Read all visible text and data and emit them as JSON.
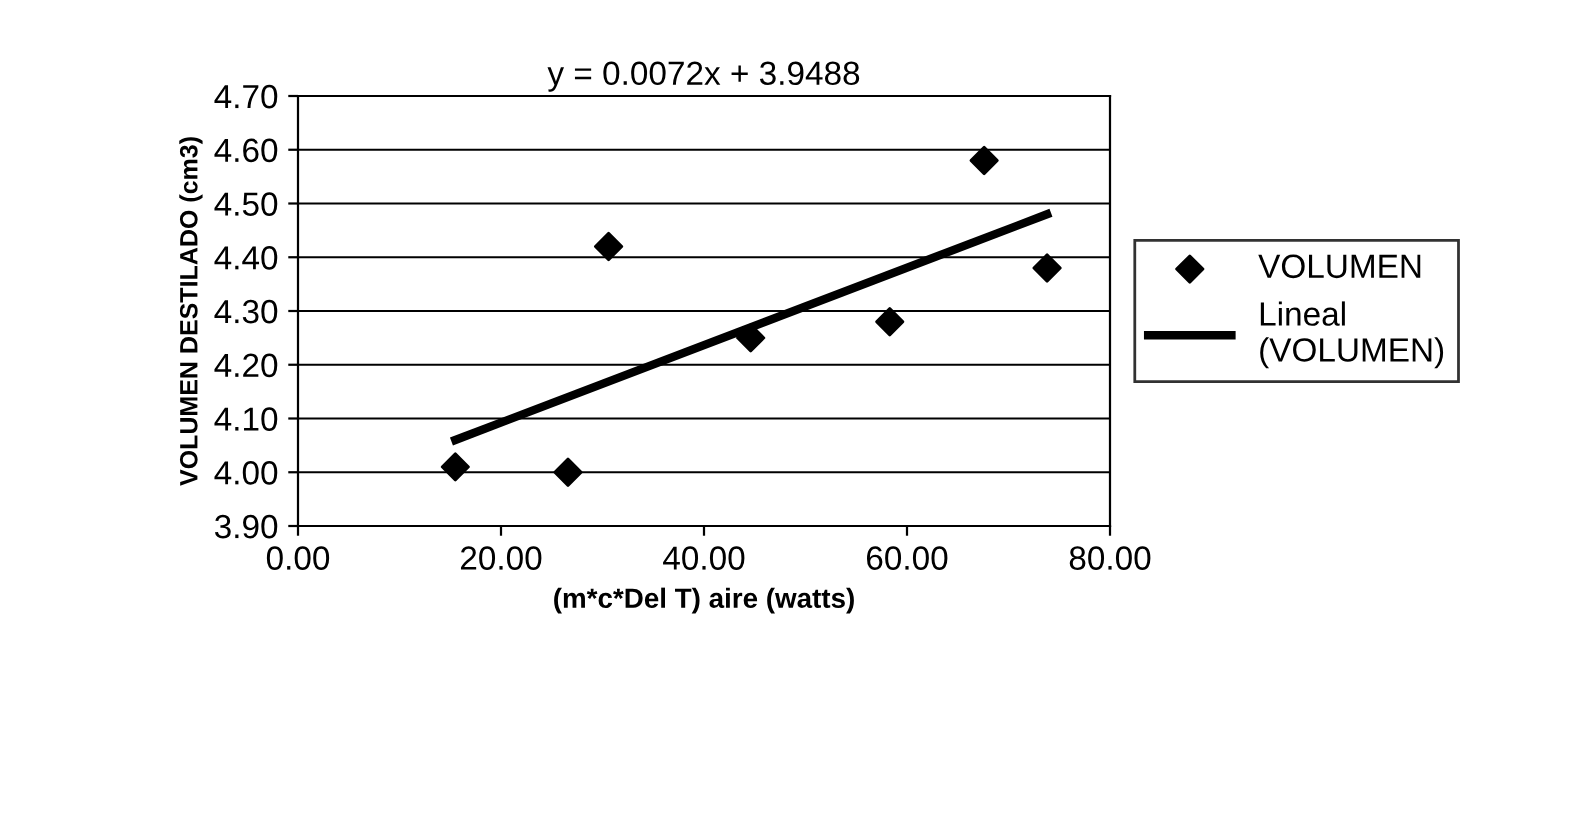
{
  "chart_data": {
    "type": "scatter",
    "xlabel": "(m*c*Del T) aire (watts)",
    "ylabel": "VOLUMEN DESTILADO (cm3)",
    "annotations": [
      "y = 0.0072x + 3.9488"
    ],
    "series": [
      {
        "name": "VOLUMEN",
        "color": "#000000",
        "marker": "diamond",
        "x": [
          15.5,
          26.6,
          30.6,
          44.6,
          58.3,
          67.6,
          73.8
        ],
        "values": [
          4.01,
          4.0,
          4.42,
          4.25,
          4.28,
          4.58,
          4.38
        ]
      },
      {
        "name": "Lineal\n(VOLUMEN)",
        "type": "line",
        "color": "#000000",
        "line_style": "solid",
        "x": [
          15.5,
          73.8
        ],
        "values": [
          4.06,
          4.48
        ]
      }
    ],
    "xlim": [
      0,
      80
    ],
    "xticks": [
      {
        "value": 0,
        "label": "0.00"
      },
      {
        "value": 20,
        "label": "20.00"
      },
      {
        "value": 40,
        "label": "40.00"
      },
      {
        "value": 60,
        "label": "60.00"
      },
      {
        "value": 80,
        "label": "80.00"
      }
    ],
    "ylim": [
      3.9,
      4.7
    ],
    "yticks": [
      {
        "value": 3.9,
        "label": "3.90"
      },
      {
        "value": 4.0,
        "label": "4.00"
      },
      {
        "value": 4.1,
        "label": "4.10"
      },
      {
        "value": 4.2,
        "label": "4.20"
      },
      {
        "value": 4.3,
        "label": "4.30"
      },
      {
        "value": 4.4,
        "label": "4.40"
      },
      {
        "value": 4.5,
        "label": "4.50"
      },
      {
        "value": 4.6,
        "label": "4.60"
      },
      {
        "value": 4.7,
        "label": "4.70"
      }
    ],
    "grid": "y",
    "legend": "right"
  }
}
